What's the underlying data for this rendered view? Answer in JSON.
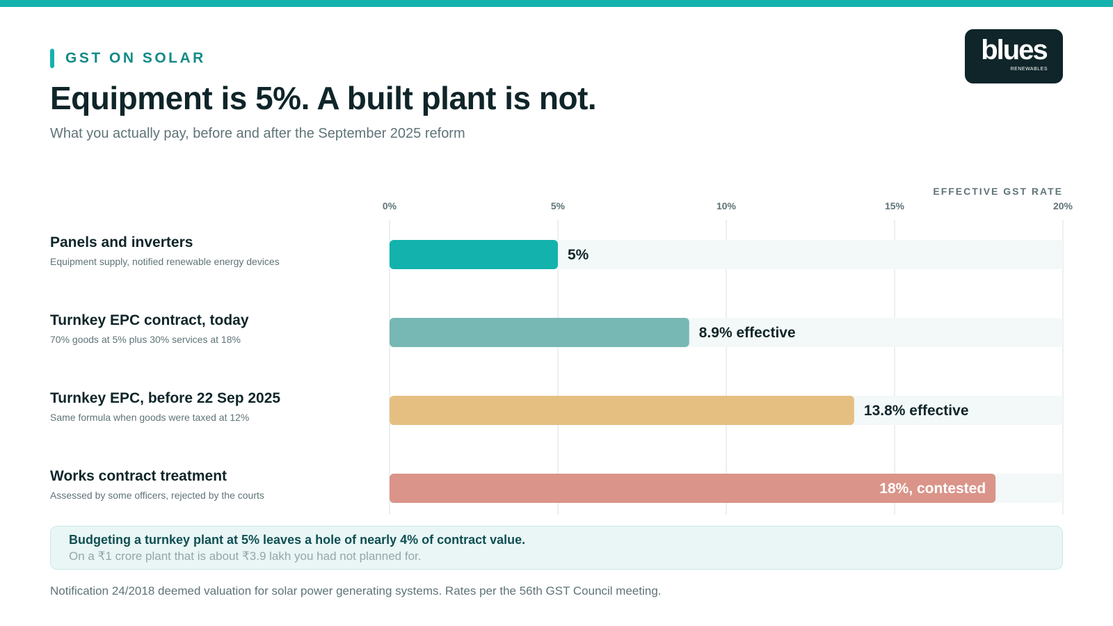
{
  "eyebrow": "GST ON SOLAR",
  "title": "Equipment is 5%. A built plant is not.",
  "subtitle": "What you actually pay, before and after the September 2025 reform",
  "logo": {
    "word": "blues",
    "tagline": "RENEWABLES"
  },
  "colors": {
    "accent": "#14b2ad",
    "dark": "#0f2529",
    "track": "#f3f8f8",
    "grid": "#e3ecec"
  },
  "chart_data": {
    "type": "bar",
    "orientation": "horizontal",
    "axis_title": "EFFECTIVE GST RATE",
    "xlim": [
      0,
      20
    ],
    "ticks": [
      0,
      5,
      10,
      15,
      20
    ],
    "tick_labels": [
      "0%",
      "5%",
      "10%",
      "15%",
      "20%"
    ],
    "grid": true,
    "categories": [
      "Panels and inverters",
      "Turnkey EPC contract, today",
      "Turnkey EPC, before 22 Sep 2025",
      "Works contract treatment"
    ],
    "subtitles": [
      "Equipment supply, notified renewable energy devices",
      "70% goods at 5% plus 30% services at 18%",
      "Same formula when goods were taxed at 12%",
      "Assessed by some officers, rejected by the courts"
    ],
    "values": [
      5,
      8.9,
      13.8,
      18
    ],
    "value_labels": [
      "5%",
      "8.9% effective",
      "13.8% effective",
      "18%, contested"
    ],
    "colors": [
      "#14b2ad",
      "#77b7b4",
      "#e5bf82",
      "#da9489"
    ]
  },
  "callout": {
    "main": "Budgeting a turnkey plant at 5% leaves a hole of nearly 4% of contract value.",
    "sub": "On a ₹1 crore plant that is about ₹3.9 lakh you had not planned for."
  },
  "footnote": "Notification 24/2018 deemed valuation for solar power generating systems. Rates per the 56th GST Council meeting."
}
